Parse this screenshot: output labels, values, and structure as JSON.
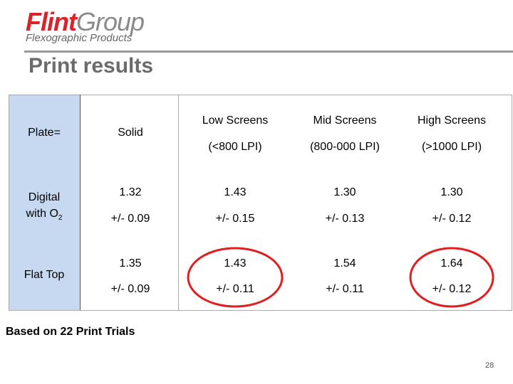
{
  "header": {
    "logo_brand": "Flint",
    "logo_group": "Group",
    "logo_subtitle": "Flexographic Products",
    "title": "Print results"
  },
  "table": {
    "columns": [
      {
        "line1": "Plate="
      },
      {
        "line1": "Solid"
      },
      {
        "line1": "Low Screens",
        "line2": "(<800 LPI)"
      },
      {
        "line1": "Mid Screens",
        "line2": "(800-000 LPI)"
      },
      {
        "line1": "High Screens",
        "line2": "(>1000 LPI)"
      }
    ],
    "rows": [
      {
        "plate": {
          "line1": "Digital",
          "line2": "with O",
          "subscript": "2"
        },
        "cells": [
          {
            "value": "1.32",
            "spread": "+/- 0.09"
          },
          {
            "value": "1.43",
            "spread": "+/- 0.15"
          },
          {
            "value": "1.30",
            "spread": "+/- 0.13"
          },
          {
            "value": "1.30",
            "spread": "+/- 0.12"
          }
        ]
      },
      {
        "plate": {
          "line1": "Flat Top"
        },
        "cells": [
          {
            "value": "1.35",
            "spread": "+/- 0.09"
          },
          {
            "value": "1.43",
            "spread": "+/- 0.11"
          },
          {
            "value": "1.54",
            "spread": "+/- 0.11"
          },
          {
            "value": "1.64",
            "spread": "+/- 0.12"
          }
        ]
      }
    ]
  },
  "footer": {
    "note": "Based on 22 Print Trials",
    "page": "28"
  }
}
